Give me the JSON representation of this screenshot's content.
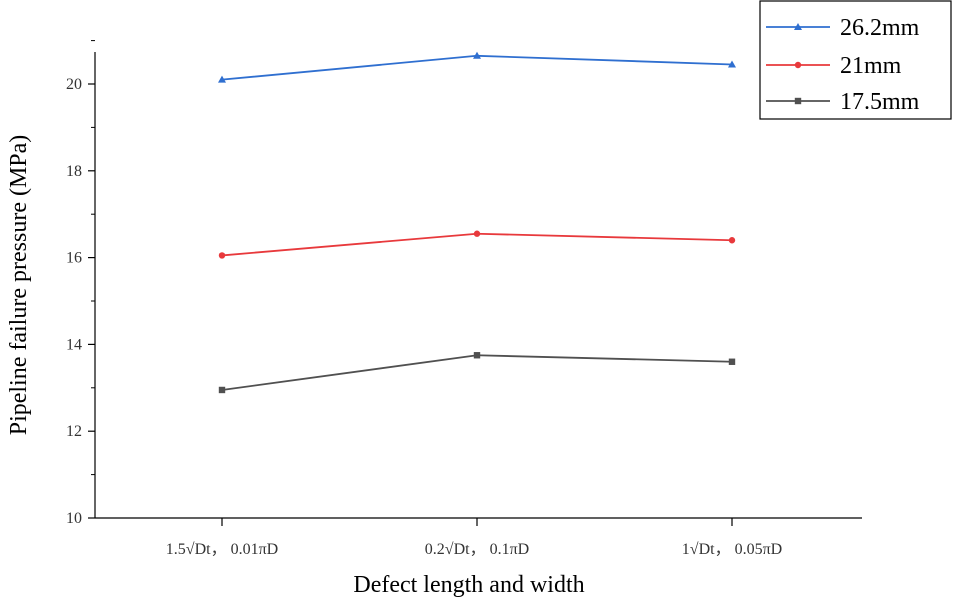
{
  "chart_data": {
    "type": "line",
    "title": "",
    "xlabel": "Defect length and width",
    "ylabel": "Pipeline failure pressure (MPa)",
    "categories": [
      "1.5√Dt， 0.01πD",
      "0.2√Dt， 0.1πD",
      "1√Dt， 0.05πD"
    ],
    "ylim": [
      10,
      21
    ],
    "yticks": [
      10,
      12,
      14,
      16,
      18,
      20
    ],
    "legend_position": "top-right",
    "grid": false,
    "series": [
      {
        "name": "26.2mm",
        "color": "#2f6fd0",
        "marker": "triangle",
        "values": [
          20.1,
          20.65,
          20.45
        ]
      },
      {
        "name": "21mm",
        "color": "#e8393c",
        "marker": "circle",
        "values": [
          16.05,
          16.55,
          16.4
        ]
      },
      {
        "name": "17.5mm",
        "color": "#505050",
        "marker": "square",
        "values": [
          12.95,
          13.75,
          13.6
        ]
      }
    ]
  }
}
